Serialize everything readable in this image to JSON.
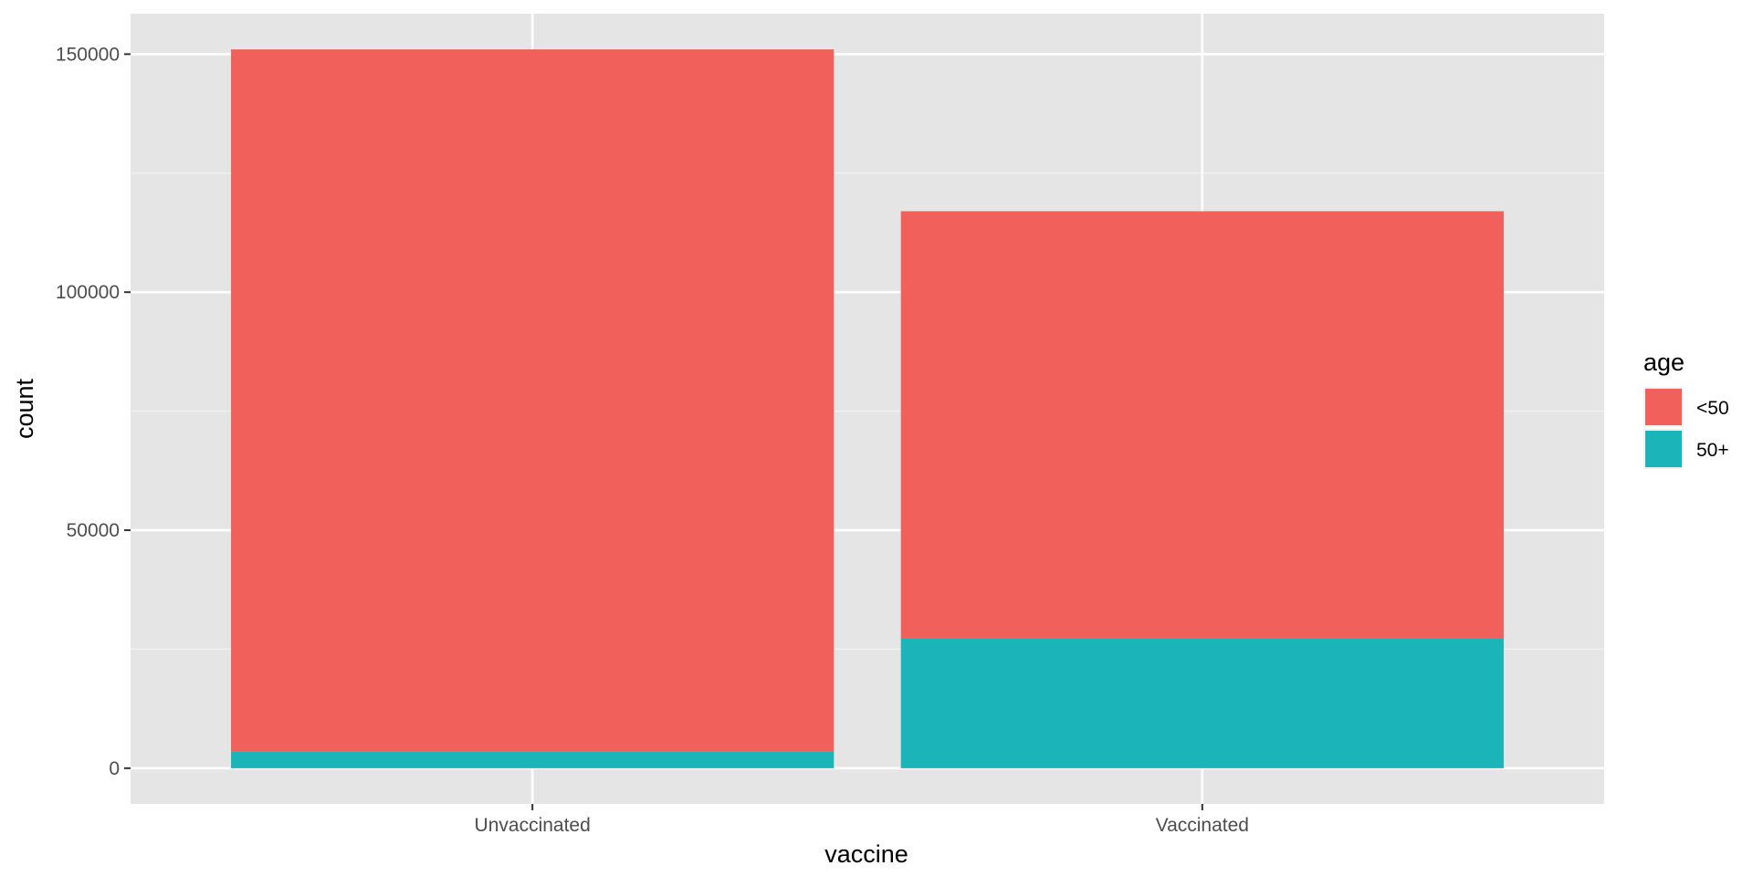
{
  "chart_data": {
    "type": "bar",
    "stacked": true,
    "categories": [
      "Unvaccinated",
      "Vaccinated"
    ],
    "series": [
      {
        "name": "<50",
        "color": "#F2605B",
        "values": [
          147500,
          89700
        ]
      },
      {
        "name": "50+",
        "color": "#1BB4B8",
        "values": [
          3500,
          27300
        ]
      }
    ],
    "xlabel": "vaccine",
    "ylabel": "count",
    "ylim": [
      -7500,
      158500
    ],
    "yticks": [
      0,
      50000,
      100000,
      150000
    ],
    "ytick_labels": [
      "0",
      "50000",
      "100000",
      "150000"
    ],
    "legend": {
      "title": "age",
      "position": "right"
    },
    "grid": true,
    "panel_background": "#E5E5E5"
  }
}
